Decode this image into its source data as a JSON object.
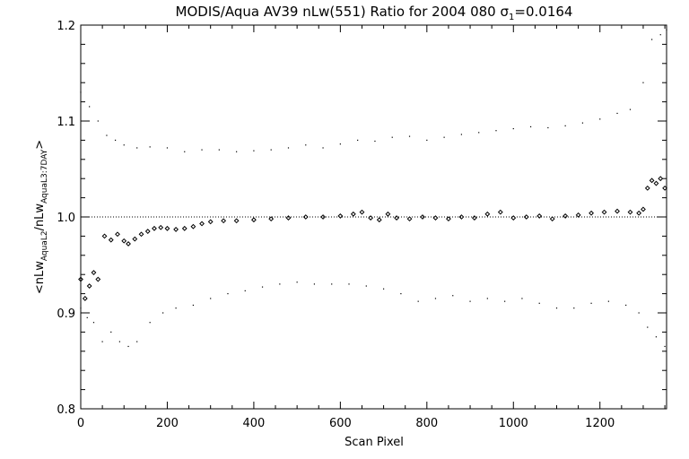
{
  "chart_data": {
    "type": "scatter",
    "title_main": "MODIS/Aqua AV39 nLw(551) Ratio for 2004 080 ",
    "title_sigma_symbol": "σ",
    "title_sigma_subscript": "1",
    "title_value": "=0.0164",
    "xlabel": "Scan Pixel",
    "ylabel_parts": [
      "<nLw",
      "AquaL2",
      "/nLw",
      "AquaL3:7DAY",
      ">"
    ],
    "xlim": [
      0,
      1354
    ],
    "ylim": [
      0.8,
      1.2
    ],
    "xticks": [
      0,
      200,
      400,
      600,
      800,
      1000,
      1200
    ],
    "yticks": [
      0.8,
      0.9,
      1.0,
      1.1,
      1.2
    ],
    "ytick_labels": [
      "0.8",
      "0.9",
      "1.0",
      "1.1",
      "1.2"
    ],
    "reference_line": 1.0,
    "grid": false,
    "series": [
      {
        "role": "mean ratio",
        "marker": "diamond",
        "x": [
          0,
          10,
          20,
          30,
          40,
          55,
          70,
          85,
          100,
          110,
          125,
          140,
          155,
          170,
          185,
          200,
          220,
          240,
          260,
          280,
          300,
          330,
          360,
          400,
          440,
          480,
          520,
          560,
          600,
          630,
          650,
          670,
          690,
          710,
          730,
          760,
          790,
          820,
          850,
          880,
          910,
          940,
          970,
          1000,
          1030,
          1060,
          1090,
          1120,
          1150,
          1180,
          1210,
          1240,
          1270,
          1290,
          1300,
          1310,
          1320,
          1330,
          1340,
          1350
        ],
        "y": [
          0.935,
          0.915,
          0.928,
          0.942,
          0.935,
          0.98,
          0.976,
          0.982,
          0.975,
          0.972,
          0.977,
          0.982,
          0.985,
          0.988,
          0.989,
          0.988,
          0.987,
          0.988,
          0.99,
          0.993,
          0.995,
          0.996,
          0.996,
          0.997,
          0.998,
          0.999,
          1.0,
          1.0,
          1.001,
          1.003,
          1.005,
          0.999,
          0.997,
          1.003,
          0.999,
          0.998,
          1.0,
          0.999,
          0.998,
          1.0,
          0.999,
          1.003,
          1.005,
          0.999,
          1.0,
          1.001,
          0.998,
          1.001,
          1.002,
          1.004,
          1.005,
          1.006,
          1.005,
          1.004,
          1.008,
          1.03,
          1.038,
          1.035,
          1.04,
          1.03
        ]
      },
      {
        "role": "upper bound",
        "marker": "dot",
        "x": [
          0,
          20,
          40,
          60,
          80,
          100,
          130,
          160,
          200,
          240,
          280,
          320,
          360,
          400,
          440,
          480,
          520,
          560,
          600,
          640,
          680,
          720,
          760,
          800,
          840,
          880,
          920,
          960,
          1000,
          1040,
          1080,
          1120,
          1160,
          1200,
          1240,
          1270,
          1300,
          1320,
          1340,
          1354
        ],
        "y": [
          1.13,
          1.115,
          1.1,
          1.085,
          1.08,
          1.075,
          1.072,
          1.073,
          1.072,
          1.068,
          1.07,
          1.07,
          1.068,
          1.069,
          1.07,
          1.072,
          1.075,
          1.072,
          1.076,
          1.08,
          1.079,
          1.083,
          1.084,
          1.08,
          1.083,
          1.086,
          1.088,
          1.09,
          1.092,
          1.094,
          1.093,
          1.095,
          1.098,
          1.102,
          1.108,
          1.112,
          1.14,
          1.185,
          1.19,
          1.195
        ]
      },
      {
        "role": "lower bound",
        "marker": "dot",
        "x": [
          0,
          15,
          30,
          50,
          70,
          90,
          110,
          130,
          160,
          190,
          220,
          260,
          300,
          340,
          380,
          420,
          460,
          500,
          540,
          580,
          620,
          660,
          700,
          740,
          780,
          820,
          860,
          900,
          940,
          980,
          1020,
          1060,
          1100,
          1140,
          1180,
          1220,
          1260,
          1290,
          1310,
          1330,
          1350
        ],
        "y": [
          0.905,
          0.895,
          0.89,
          0.87,
          0.88,
          0.87,
          0.865,
          0.87,
          0.89,
          0.9,
          0.905,
          0.908,
          0.915,
          0.92,
          0.923,
          0.927,
          0.93,
          0.932,
          0.93,
          0.93,
          0.93,
          0.928,
          0.925,
          0.92,
          0.912,
          0.915,
          0.918,
          0.912,
          0.915,
          0.912,
          0.915,
          0.91,
          0.905,
          0.905,
          0.91,
          0.912,
          0.908,
          0.9,
          0.885,
          0.875,
          0.865
        ]
      }
    ]
  }
}
